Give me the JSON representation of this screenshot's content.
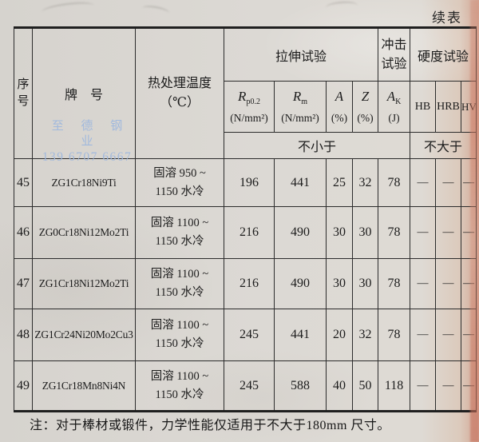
{
  "page": {
    "continued_label": "续表",
    "note": "注：对于棒材或锻件，力学性能仅适用于不大于180mm 尺寸。",
    "watermark": {
      "line1": "至 德 钢 业",
      "line2": "139 6707 6667",
      "color": "#9fb8de"
    },
    "paper_color": "#dcd9d4",
    "page_edge_color": "#ce7862"
  },
  "table": {
    "header": {
      "serial": {
        "l1": "序",
        "l2": "号"
      },
      "grade": "牌　号",
      "heat": {
        "l1": "热处理温度",
        "l2": "（℃）"
      },
      "tensile": "拉伸试验",
      "impact": {
        "l1": "冲击",
        "l2": "试验"
      },
      "hardness": "硬度试验",
      "cols": [
        {
          "sym": "R",
          "sub": "p0.2",
          "unit": "(N/mm²)"
        },
        {
          "sym": "R",
          "sub": "m",
          "unit": "(N/mm²)"
        },
        {
          "sym": "A",
          "sub": "",
          "unit": "(%)"
        },
        {
          "sym": "Z",
          "sub": "",
          "unit": "(%)"
        },
        {
          "sym": "A",
          "sub": "K",
          "unit": "(J)"
        }
      ],
      "hb": "HB",
      "hrb": "HRB",
      "hv": "HV",
      "min_label": "不小于",
      "max_label": "不大于"
    },
    "rows": [
      {
        "no": "45",
        "grade": "ZG1Cr18Ni9Ti",
        "heat1": "固溶 950 ~",
        "heat2": "1150 水冷",
        "rp": "196",
        "rm": "441",
        "a": "25",
        "z": "32",
        "ak": "78",
        "hb": "—",
        "hrb": "—",
        "hv": "—"
      },
      {
        "no": "46",
        "grade": "ZG0Cr18Ni12Mo2Ti",
        "heat1": "固溶 1100 ~",
        "heat2": "1150 水冷",
        "rp": "216",
        "rm": "490",
        "a": "30",
        "z": "30",
        "ak": "78",
        "hb": "—",
        "hrb": "—",
        "hv": "—"
      },
      {
        "no": "47",
        "grade": "ZG1Cr18Ni12Mo2Ti",
        "heat1": "固溶 1100 ~",
        "heat2": "1150 水冷",
        "rp": "216",
        "rm": "490",
        "a": "30",
        "z": "30",
        "ak": "78",
        "hb": "—",
        "hrb": "—",
        "hv": "—"
      },
      {
        "no": "48",
        "grade": "ZG1Cr24Ni20Mo2Cu3",
        "heat1": "固溶 1100 ~",
        "heat2": "1150 水冷",
        "rp": "245",
        "rm": "441",
        "a": "20",
        "z": "32",
        "ak": "78",
        "hb": "—",
        "hrb": "—",
        "hv": "—"
      },
      {
        "no": "49",
        "grade": "ZG1Cr18Mn8Ni4N",
        "heat1": "固溶 1100 ~",
        "heat2": "1150 水冷",
        "rp": "245",
        "rm": "588",
        "a": "40",
        "z": "50",
        "ak": "118",
        "hb": "—",
        "hrb": "—",
        "hv": "—"
      }
    ]
  }
}
